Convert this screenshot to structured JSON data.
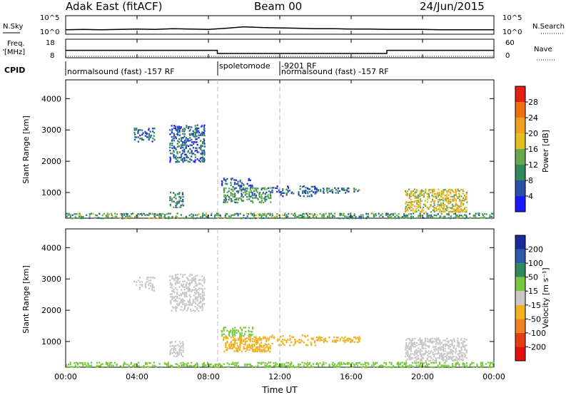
{
  "header": {
    "radar_title": "Adak East (fitACF)",
    "beam": "Beam 00",
    "date": "24/Jun/2015"
  },
  "nsky_panel": {
    "left_label": "N.Sky",
    "right_label": "N.Search",
    "left_ticks": [
      "10^5",
      "10^0"
    ],
    "right_ticks": [
      "10^5",
      "10^0"
    ]
  },
  "freq_panel": {
    "left_label_line1": "Freq.",
    "left_label_line2": "[MHz]",
    "right_label": "Nave",
    "left_ticks": [
      "18",
      "8"
    ],
    "right_ticks": [
      "60",
      "0"
    ]
  },
  "cpid": {
    "label": "CPID",
    "segments": [
      {
        "start_hour": 0,
        "text": "normalsound (fast) -157 RF"
      },
      {
        "start_hour": 8.5,
        "text": "spoletomode"
      },
      {
        "start_hour": 12,
        "text": "-9201 RF"
      },
      {
        "start_hour": 12,
        "text": "normalsound (fast) -157 RF"
      }
    ]
  },
  "x_axis": {
    "label": "Time UT",
    "ticks": [
      "00:00",
      "04:00",
      "08:00",
      "12:00",
      "16:00",
      "20:00",
      "00:00"
    ]
  },
  "y_axis": {
    "label": "Slant Range [km]",
    "ticks": [
      "1000",
      "2000",
      "3000",
      "4000"
    ]
  },
  "power_scale": {
    "label": "Power [dB]",
    "ticks": [
      "4",
      "8",
      "12",
      "16",
      "20",
      "24",
      "28"
    ],
    "colors": [
      "#1a1aff",
      "#2a4fa8",
      "#2e8a5a",
      "#6aa84f",
      "#e0c020",
      "#f0a020",
      "#f07010",
      "#e02010"
    ]
  },
  "velocity_scale": {
    "label": "Velocity [m s⁻¹]",
    "ticks": [
      "200",
      "100",
      "50",
      "15",
      "-15",
      "-50",
      "-100",
      "-200"
    ],
    "colors": [
      "#1a2a9a",
      "#2a5aaa",
      "#2e8a5a",
      "#7ac840",
      "#c8c8c8",
      "#f0b020",
      "#f08020",
      "#e04010",
      "#e01010"
    ]
  },
  "chart_data": [
    {
      "type": "line",
      "title": "N.Sky / N.Search",
      "x": [
        0,
        1,
        2,
        3,
        4,
        5,
        6,
        7,
        8,
        9,
        10,
        11,
        12,
        13,
        14,
        15,
        16,
        17,
        18,
        19,
        20,
        21,
        22,
        23,
        24
      ],
      "series": [
        {
          "name": "N.Sky",
          "values": [
            1.2,
            1.3,
            1.2,
            1.3,
            1.4,
            1.3,
            1.5,
            1.4,
            1.3,
            1.6,
            2.0,
            1.8,
            1.7,
            1.6,
            1.5,
            1.5,
            1.4,
            1.4,
            1.3,
            1.3,
            1.3,
            1.2,
            1.2,
            1.2,
            1.2
          ]
        }
      ],
      "xlim": [
        0,
        24
      ]
    },
    {
      "type": "line",
      "title": "Freq. [MHz] / Nave",
      "x": [
        0,
        8.5,
        8.5,
        18,
        18,
        24
      ],
      "series": [
        {
          "name": "Freq.",
          "values": [
            12,
            12,
            10.3,
            10.3,
            12,
            12
          ]
        },
        {
          "name": "Nave",
          "values": [
            8,
            8,
            8,
            8,
            8,
            8
          ]
        }
      ],
      "xlim": [
        0,
        24
      ],
      "ylim": [
        8,
        18
      ]
    },
    {
      "type": "heatmap",
      "title": "Power [dB]",
      "xlabel": "Time UT",
      "ylabel": "Slant Range [km]",
      "xlim": [
        0,
        24
      ],
      "ylim": [
        180,
        4600
      ],
      "regions": [
        {
          "t0": 3.8,
          "t1": 5.0,
          "r0": 2650,
          "r1": 3100,
          "value": 6,
          "density": 0.35
        },
        {
          "t0": 5.8,
          "t1": 7.8,
          "r0": 2000,
          "r1": 3200,
          "value": 7,
          "density": 0.45
        },
        {
          "t0": 5.8,
          "t1": 6.6,
          "r0": 550,
          "r1": 1050,
          "value": 10,
          "density": 0.55
        },
        {
          "t0": 8.7,
          "t1": 10.5,
          "r0": 1200,
          "r1": 1500,
          "value": 6,
          "density": 0.35
        },
        {
          "t0": 8.8,
          "t1": 11.5,
          "r0": 700,
          "r1": 1200,
          "value": 11,
          "density": 0.55
        },
        {
          "t0": 11.5,
          "t1": 14.0,
          "r0": 900,
          "r1": 1250,
          "value": 7,
          "density": 0.3
        },
        {
          "t0": 14.0,
          "t1": 16.5,
          "r0": 1000,
          "r1": 1200,
          "value": 8,
          "density": 0.5
        },
        {
          "t0": 19.0,
          "t1": 22.5,
          "r0": 400,
          "r1": 1150,
          "value": 18,
          "density": 0.55
        },
        {
          "t0": 0.0,
          "t1": 24.0,
          "r0": 200,
          "r1": 380,
          "value": 12,
          "density": 0.45
        }
      ]
    },
    {
      "type": "heatmap",
      "title": "Velocity [m s⁻¹]",
      "xlabel": "Time UT",
      "ylabel": "Slant Range [km]",
      "xlim": [
        0,
        24
      ],
      "ylim": [
        180,
        4600
      ],
      "regions": [
        {
          "t0": 3.8,
          "t1": 5.0,
          "r0": 2650,
          "r1": 3100,
          "value": 0,
          "density": 0.35
        },
        {
          "t0": 5.8,
          "t1": 7.8,
          "r0": 2000,
          "r1": 3200,
          "value": 0,
          "density": 0.45
        },
        {
          "t0": 5.8,
          "t1": 6.6,
          "r0": 550,
          "r1": 1050,
          "value": 0,
          "density": 0.55
        },
        {
          "t0": 8.7,
          "t1": 10.5,
          "r0": 1200,
          "r1": 1500,
          "value": 40,
          "density": 0.45
        },
        {
          "t0": 8.8,
          "t1": 11.5,
          "r0": 700,
          "r1": 1200,
          "value": -40,
          "density": 0.55
        },
        {
          "t0": 11.5,
          "t1": 14.0,
          "r0": 900,
          "r1": 1250,
          "value": -30,
          "density": 0.3
        },
        {
          "t0": 14.0,
          "t1": 16.5,
          "r0": 1000,
          "r1": 1200,
          "value": -20,
          "density": 0.5
        },
        {
          "t0": 19.0,
          "t1": 22.5,
          "r0": 400,
          "r1": 1150,
          "value": 0,
          "density": 0.55
        },
        {
          "t0": 0.0,
          "t1": 24.0,
          "r0": 200,
          "r1": 380,
          "value": 20,
          "density": 0.45
        }
      ]
    }
  ]
}
